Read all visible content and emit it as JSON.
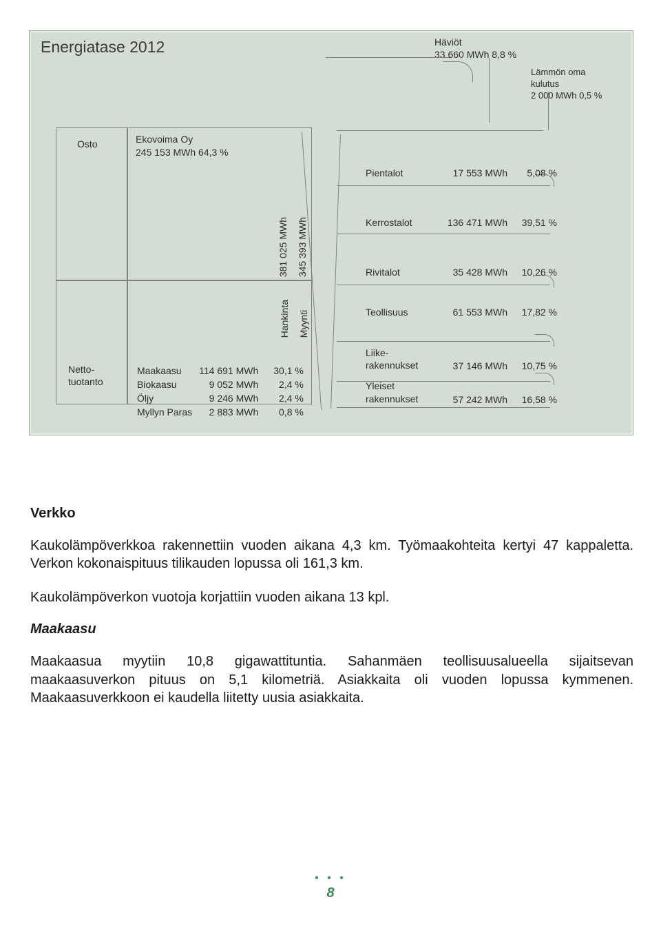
{
  "diagram": {
    "title": "Energiatase 2012",
    "background_color": "#d4ddd4",
    "border_color": "#9aa89a",
    "haviot": {
      "label": "Häviöt",
      "value": "33 660  MWh  8,8  %"
    },
    "oma_kulutus": {
      "l1": "Lämmön oma",
      "l2": "kulutus",
      "l3": "2 000 MWh 0,5 %"
    },
    "left": {
      "osto_label": "Osto",
      "ekovoima_l1": "Ekovoima Oy",
      "ekovoima_l2": "245 153  MWh  64,3 %",
      "netto_l1": "Netto-",
      "netto_l2": "tuotanto",
      "netto_rows": [
        {
          "name": "Maakaasu",
          "value": "114 691 MWh",
          "pct": "30,1 %"
        },
        {
          "name": "Biokaasu",
          "value": "9 052 MWh",
          "pct": "2,4 %"
        },
        {
          "name": "Öljy",
          "value": "9 246 MWh",
          "pct": "2,4 %"
        },
        {
          "name": "Myllyn Paras",
          "value": "2 883 MWh",
          "pct": "0,8 %"
        }
      ]
    },
    "vertical": {
      "hankinta_val": "381 025  MWh",
      "myynti_val": "345 393  MWh",
      "hankinta_lbl": "Hankinta",
      "myynti_lbl": "Myynti"
    },
    "outputs": [
      {
        "name": "Pientalot",
        "value": "17 553 MWh",
        "pct": "5,08 %",
        "gap": "none"
      },
      {
        "name": "Kerrostalot",
        "value": "136 471 MWh",
        "pct": "39,51 %",
        "gap": "lg"
      },
      {
        "name": "Rivitalot",
        "value": "35 428 MWh",
        "pct": "10,26 %",
        "gap": "lg"
      },
      {
        "name": "Teollisuus",
        "value": "61 553 MWh",
        "pct": "17,82 %",
        "gap": "md"
      },
      {
        "name": "Liike-\nrakennukset",
        "value": "37 146 MWh",
        "pct": "10,75 %",
        "gap": "md"
      },
      {
        "name": "Yleiset\nrakennukset",
        "value": "57 242 MWh",
        "pct": "16,58 %",
        "gap": "sm"
      }
    ]
  },
  "body": {
    "h_verko": "Verkko",
    "p1": "Kaukolämpöverkkoa rakennettiin vuoden aikana 4,3 km. Työmaakohteita kertyi 47 kappaletta. Verkon kokonaispituus tilikauden lopussa oli 161,3 km.",
    "p2": "Kaukolämpöverkon vuotoja korjattiin vuoden aikana 13 kpl.",
    "h_maakaasu": "Maakaasu",
    "p3": "Maakaasua myytiin 10,8 gigawattituntia. Sahanmäen teollisuusalueella sijaitsevan maakaasuverkon pituus on 5,1 kilometriä. Asiakkaita oli vuoden lopussa kymmenen. Maakaasuverkkoon ei kaudella liitetty uusia asiakkaita."
  },
  "footer": {
    "dots": "• • •",
    "page": "8",
    "color": "#3f8a5d"
  }
}
